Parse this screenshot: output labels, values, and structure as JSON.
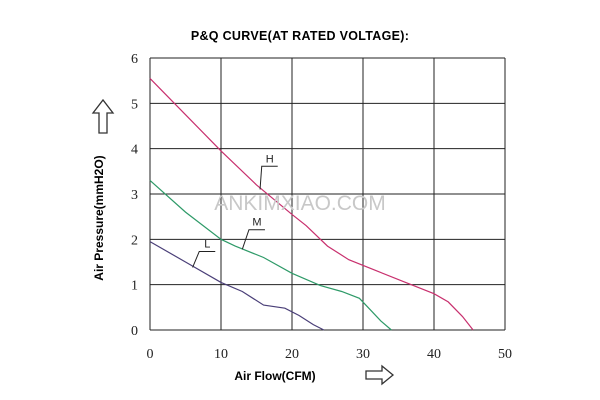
{
  "chart_data": {
    "type": "line",
    "title": "P&Q CURVE(AT RATED VOLTAGE):",
    "xlabel": "Air Flow(CFM)",
    "ylabel": "Air Pressure(mmH2O)",
    "xlim": [
      0,
      50
    ],
    "ylim": [
      0,
      6
    ],
    "x_ticks": [
      "0",
      "10",
      "20",
      "30",
      "40",
      "50"
    ],
    "y_ticks": [
      "0",
      "1",
      "2",
      "3",
      "4",
      "5",
      "6"
    ],
    "grid": true,
    "watermark": "ANKIMXIAO.COM",
    "series": [
      {
        "name": "H",
        "color": "#c8306e",
        "points": [
          [
            0,
            5.55
          ],
          [
            5,
            4.75
          ],
          [
            10,
            3.95
          ],
          [
            15,
            3.2
          ],
          [
            20,
            2.55
          ],
          [
            22,
            2.3
          ],
          [
            25,
            1.85
          ],
          [
            28,
            1.55
          ],
          [
            32,
            1.3
          ],
          [
            36,
            1.05
          ],
          [
            40,
            0.8
          ],
          [
            42,
            0.62
          ],
          [
            44,
            0.3
          ],
          [
            45.5,
            0
          ]
        ]
      },
      {
        "name": "M",
        "color": "#2e9a68",
        "points": [
          [
            0,
            3.3
          ],
          [
            5,
            2.6
          ],
          [
            10,
            2.0
          ],
          [
            12,
            1.85
          ],
          [
            16,
            1.6
          ],
          [
            20,
            1.25
          ],
          [
            24,
            0.98
          ],
          [
            27,
            0.85
          ],
          [
            29.5,
            0.7
          ],
          [
            31,
            0.45
          ],
          [
            32.5,
            0.2
          ],
          [
            34,
            0
          ]
        ]
      },
      {
        "name": "L",
        "color": "#4a3f78",
        "points": [
          [
            0,
            1.95
          ],
          [
            5,
            1.5
          ],
          [
            10,
            1.05
          ],
          [
            13,
            0.85
          ],
          [
            16,
            0.55
          ],
          [
            19,
            0.48
          ],
          [
            21,
            0.32
          ],
          [
            23,
            0.12
          ],
          [
            24.5,
            0
          ]
        ]
      }
    ]
  }
}
